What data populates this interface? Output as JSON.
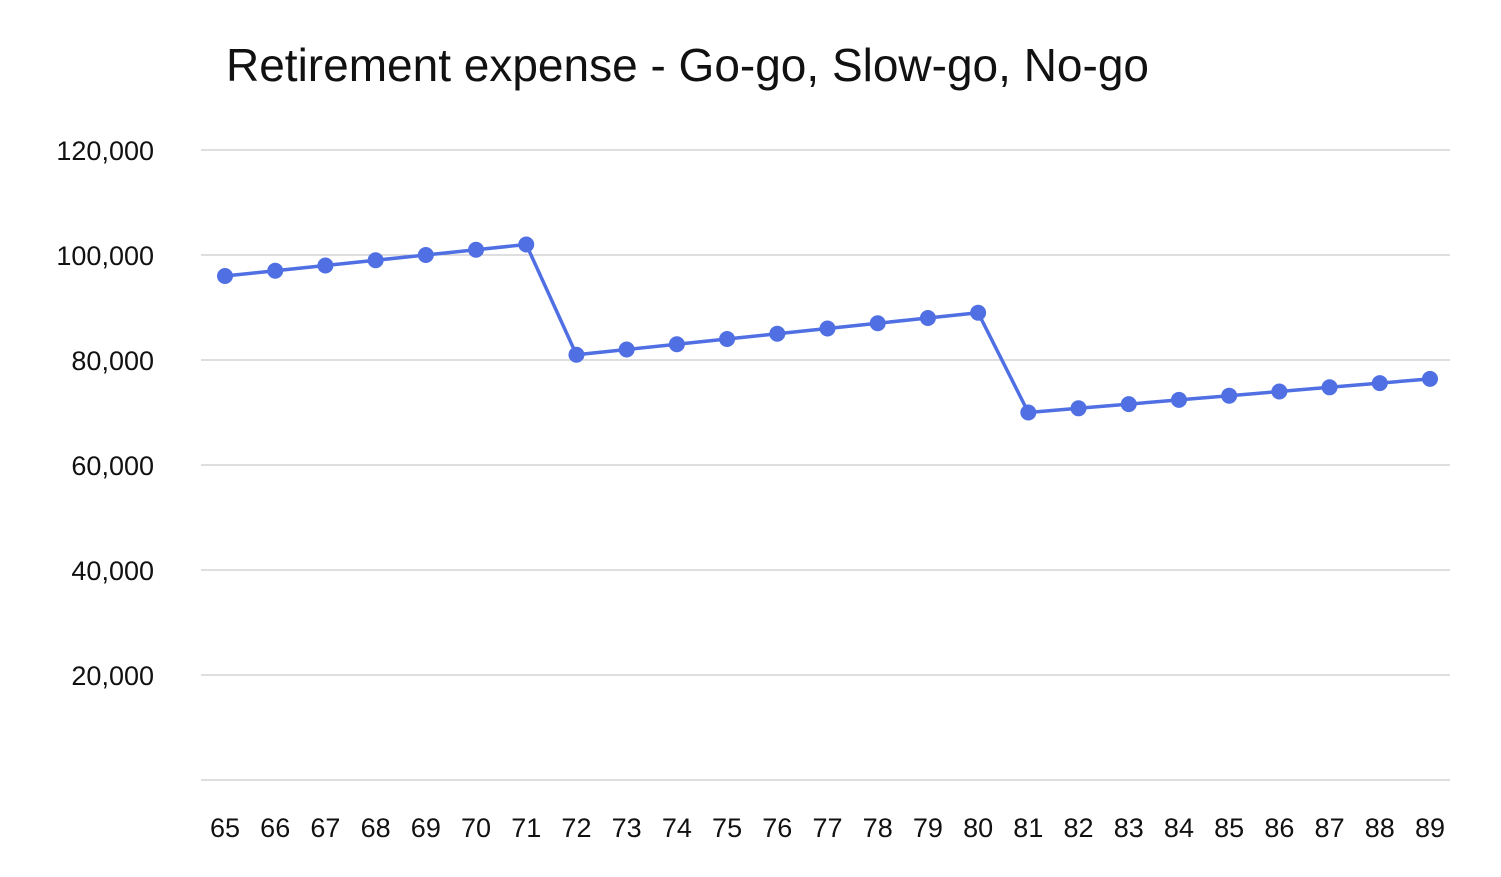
{
  "chart_data": {
    "type": "line",
    "title": "Retirement expense - Go-go, Slow-go, No-go",
    "xlabel": "",
    "ylabel": "",
    "ylim": [
      0,
      120000
    ],
    "y_ticks": [
      0,
      20000,
      40000,
      60000,
      80000,
      100000,
      120000
    ],
    "y_tick_labels": [
      "",
      "20,000",
      "40,000",
      "60,000",
      "80,000",
      "100,000",
      "120,000"
    ],
    "grid": true,
    "legend": null,
    "categories": [
      "65",
      "66",
      "67",
      "68",
      "69",
      "70",
      "71",
      "72",
      "73",
      "74",
      "75",
      "76",
      "77",
      "78",
      "79",
      "80",
      "81",
      "82",
      "83",
      "84",
      "85",
      "86",
      "87",
      "88",
      "89"
    ],
    "series": [
      {
        "name": "Retirement expense",
        "color": "#4F6FE3",
        "values": [
          96000,
          97000,
          98000,
          99000,
          100000,
          101000,
          102000,
          81000,
          82000,
          83000,
          84000,
          85000,
          86000,
          87000,
          88000,
          89000,
          70000,
          70800,
          71600,
          72400,
          73200,
          74000,
          74800,
          75600,
          76400
        ]
      }
    ]
  },
  "colors": {
    "line": "#4F6FE3",
    "grid": "#BDBDBD",
    "text": "#111111"
  }
}
